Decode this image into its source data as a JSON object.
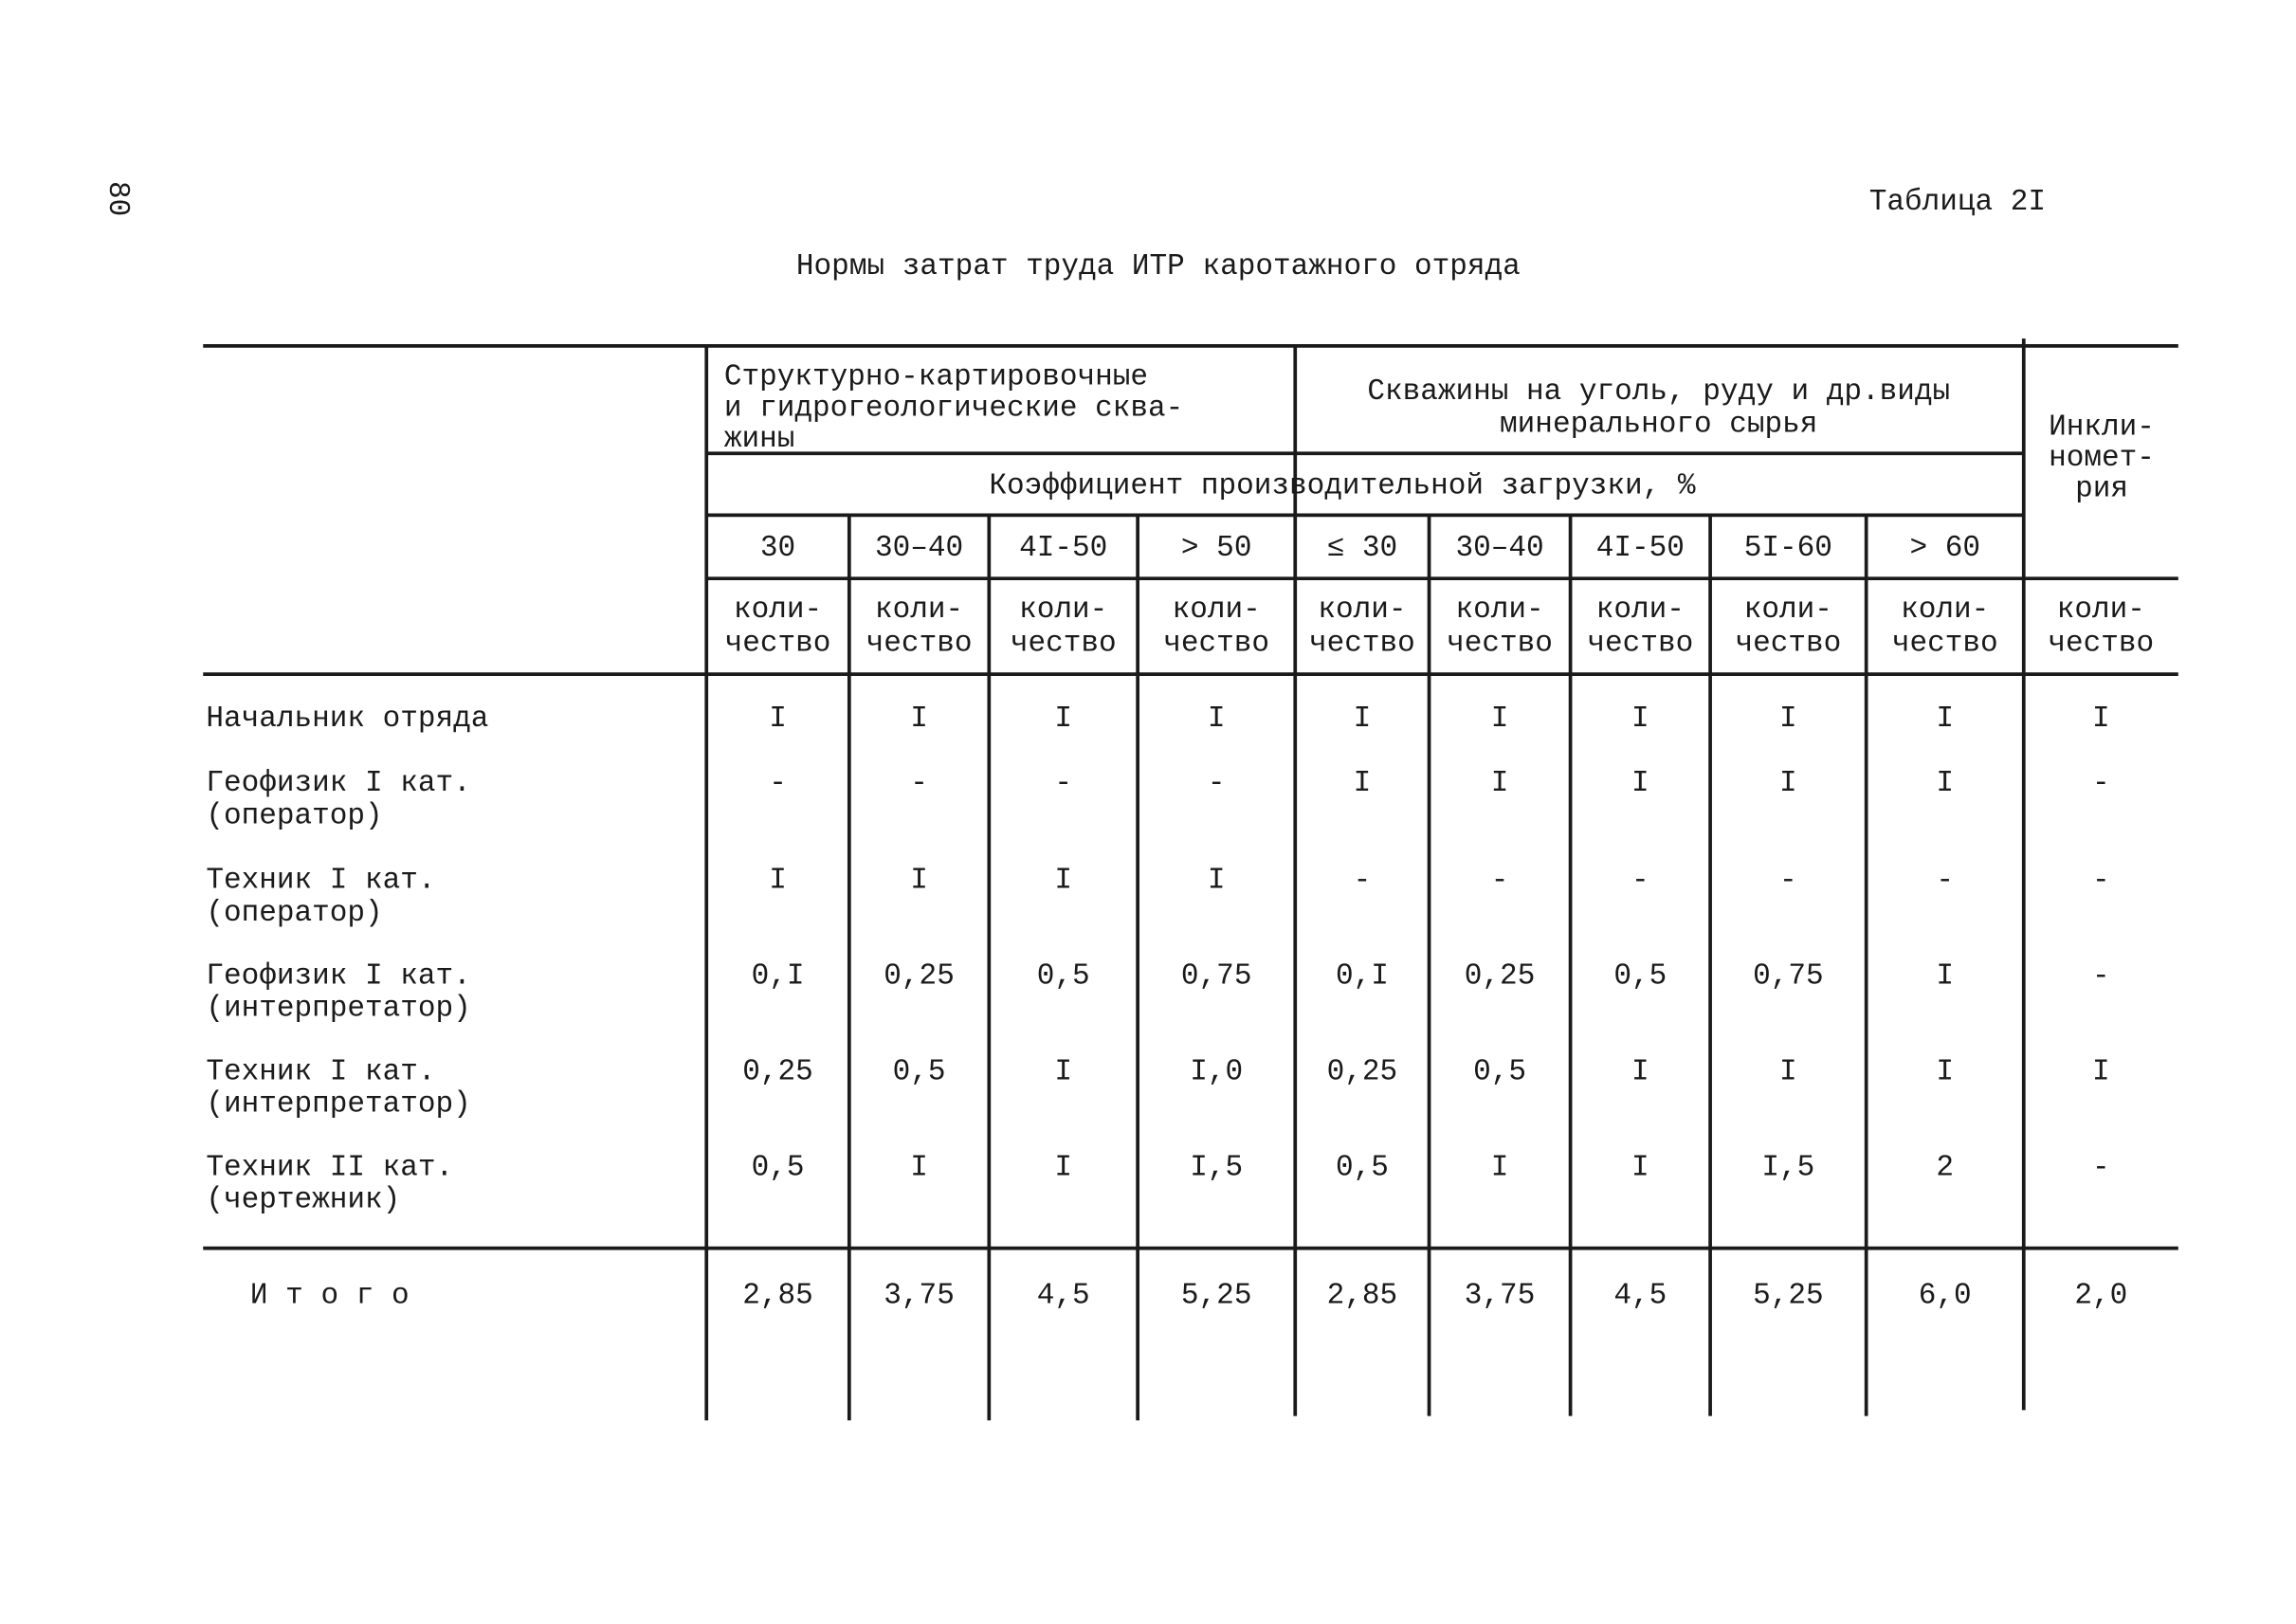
{
  "page_number": "80",
  "table_label": "Таблица 2I",
  "title": "Нормы затрат труда ИТР каротажного отряда",
  "table": {
    "group_headers": [
      [
        "Структурно-картировочные",
        "и гидрогеологические сква-",
        "жины"
      ],
      [
        "Скважины на уголь, руду и др.виды",
        "минерального сырья"
      ],
      [
        "Инкли-",
        "номет-",
        "рия"
      ]
    ],
    "coefficient_header": "Коэффициент производительной загрузки, %",
    "ranges": [
      "30",
      "30–40",
      "4I-50",
      "> 50",
      "≤ 30",
      "30–40",
      "4I-50",
      "5I-60",
      "> 60"
    ],
    "unit_headers": [
      [
        "коли-",
        "чество"
      ],
      [
        "коли-",
        "чество"
      ],
      [
        "коли-",
        "чество"
      ],
      [
        "коли-",
        "чество"
      ],
      [
        "коли-",
        "чество"
      ],
      [
        "коли-",
        "чество"
      ],
      [
        "коли-",
        "чество"
      ],
      [
        "коли-",
        "чество"
      ],
      [
        "коли-",
        "чество"
      ],
      [
        "коли-",
        "чество"
      ]
    ],
    "rows": [
      {
        "label": [
          "Начальник отряда"
        ],
        "values": [
          "I",
          "I",
          "I",
          "I",
          "I",
          "I",
          "I",
          "I",
          "I",
          "I"
        ]
      },
      {
        "label": [
          "Геофизик I кат.",
          "(оператор)"
        ],
        "values": [
          "-",
          "-",
          "-",
          "-",
          "I",
          "I",
          "I",
          "I",
          "I",
          "-"
        ]
      },
      {
        "label": [
          "Техник I кат.",
          "(оператор)"
        ],
        "values": [
          "I",
          "I",
          "I",
          "I",
          "-",
          "-",
          "-",
          "-",
          "-",
          "-"
        ]
      },
      {
        "label": [
          "Геофизик I кат.",
          "(интерпретатор)"
        ],
        "values": [
          "0,I",
          "0,25",
          "0,5",
          "0,75",
          "0,I",
          "0,25",
          "0,5",
          "0,75",
          "I",
          "-"
        ]
      },
      {
        "label": [
          "Техник I кат.",
          "(интерпретатор)"
        ],
        "values": [
          "0,25",
          "0,5",
          "I",
          "I,0",
          "0,25",
          "0,5",
          "I",
          "I",
          "I",
          "I"
        ]
      },
      {
        "label": [
          "Техник II кат.",
          "(чертежник)"
        ],
        "values": [
          "0,5",
          "I",
          "I",
          "I,5",
          "0,5",
          "I",
          "I",
          "I,5",
          "2",
          "-"
        ]
      }
    ],
    "total": {
      "label": "И т о г о",
      "values": [
        "2,85",
        "3,75",
        "4,5",
        "5,25",
        "2,85",
        "3,75",
        "4,5",
        "5,25",
        "6,0",
        "2,0"
      ]
    }
  }
}
